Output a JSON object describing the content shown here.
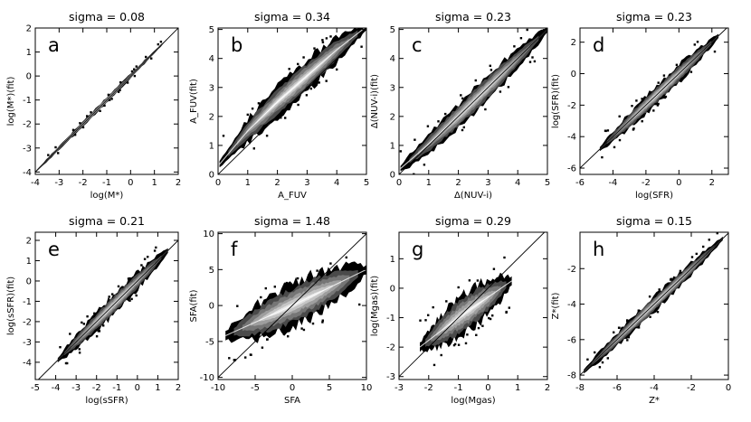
{
  "chart_data": [
    {
      "type": "heatmap",
      "panel_label": "a",
      "title": "sigma =  0.08",
      "xlabel": "log(M*)",
      "ylabel": "log(M*)(fit)",
      "xlim": [
        -4,
        2
      ],
      "ylim": [
        -4.1,
        2
      ],
      "xticks": [
        -4,
        -3,
        -2,
        -1,
        0,
        1,
        2
      ],
      "yticks": [
        -4,
        -3,
        -2,
        -1,
        0,
        1,
        2
      ],
      "ridge": [
        [
          -4,
          -4
        ],
        [
          1.5,
          1.5
        ]
      ],
      "spread": 0.12,
      "x_extent": [
        -4,
        1.5
      ],
      "one_to_one_line": true
    },
    {
      "type": "heatmap",
      "panel_label": "b",
      "title": "sigma =  0.34",
      "xlabel": "A_FUV",
      "ylabel": "A_FUV(fit)",
      "xlim": [
        0,
        5
      ],
      "ylim": [
        0,
        5.05
      ],
      "xticks": [
        0,
        1,
        2,
        3,
        4,
        5
      ],
      "yticks": [
        0,
        1,
        2,
        3,
        4,
        5
      ],
      "ridge": [
        [
          0.05,
          0.35
        ],
        [
          0.5,
          0.9
        ],
        [
          1.0,
          1.5
        ],
        [
          2.0,
          2.5
        ],
        [
          3.0,
          3.4
        ],
        [
          4.0,
          4.3
        ],
        [
          5.0,
          5.1
        ]
      ],
      "spread": 0.55,
      "x_extent": [
        0.05,
        5
      ],
      "one_to_one_line": true
    },
    {
      "type": "heatmap",
      "panel_label": "c",
      "title": "sigma =  0.23",
      "xlabel": "Δ(NUV-i)",
      "ylabel": "Δ(NUV-i)(fit)",
      "xlim": [
        0,
        5
      ],
      "ylim": [
        0,
        5.05
      ],
      "xticks": [
        0,
        1,
        2,
        3,
        4,
        5
      ],
      "yticks": [
        0,
        1,
        2,
        3,
        4,
        5
      ],
      "ridge": [
        [
          0.05,
          0.2
        ],
        [
          0.5,
          0.6
        ],
        [
          1.0,
          1.05
        ],
        [
          2.0,
          2.0
        ],
        [
          3.0,
          3.0
        ],
        [
          4.0,
          4.0
        ],
        [
          5.0,
          5.0
        ]
      ],
      "spread": 0.45,
      "x_extent": [
        0.05,
        5
      ],
      "one_to_one_line": true
    },
    {
      "type": "heatmap",
      "panel_label": "d",
      "title": "sigma =  0.23",
      "xlabel": "log(SFR)",
      "ylabel": "log(SFR)(fit)",
      "xlim": [
        -6,
        3
      ],
      "ylim": [
        -6.4,
        2.9
      ],
      "xticks": [
        -6,
        -4,
        -2,
        0,
        2
      ],
      "yticks": [
        -6,
        -4,
        -2,
        0,
        2
      ],
      "ridge": [
        [
          -4.8,
          -4.8
        ],
        [
          2.4,
          2.4
        ]
      ],
      "spread": 0.6,
      "x_extent": [
        -4.8,
        2.4
      ],
      "one_to_one_line": true
    },
    {
      "type": "heatmap",
      "panel_label": "e",
      "title": "sigma =  0.21",
      "xlabel": "log(sSFR)",
      "ylabel": "log(sSFR)(fit)",
      "xlim": [
        -5,
        2
      ],
      "ylim": [
        -4.85,
        2.4
      ],
      "xticks": [
        -5,
        -4,
        -3,
        -2,
        -1,
        0,
        1,
        2
      ],
      "yticks": [
        -4,
        -3,
        -2,
        -1,
        0,
        1,
        2
      ],
      "ridge": [
        [
          -3.9,
          -3.9
        ],
        [
          1.5,
          1.5
        ]
      ],
      "spread": 0.5,
      "x_extent": [
        -3.9,
        1.5
      ],
      "one_to_one_line": true
    },
    {
      "type": "heatmap",
      "panel_label": "f",
      "title": "sigma =  1.48",
      "xlabel": "SFA",
      "ylabel": "SFA(fit)",
      "xlim": [
        -10,
        10
      ],
      "ylim": [
        -10.3,
        10.2
      ],
      "xticks": [
        -10,
        -5,
        0,
        5,
        10
      ],
      "yticks": [
        -10,
        -5,
        0,
        5,
        10
      ],
      "ridge": [
        [
          -9,
          -4.2
        ],
        [
          0,
          0
        ],
        [
          10,
          5
        ]
      ],
      "spread": 3.0,
      "x_extent": [
        -9,
        10
      ],
      "one_to_one_line": true
    },
    {
      "type": "heatmap",
      "panel_label": "g",
      "title": "sigma =  0.29",
      "xlabel": "log(Mgas)",
      "ylabel": "log(Mgas)(fit)",
      "xlim": [
        -3,
        2
      ],
      "ylim": [
        -3.1,
        1.9
      ],
      "xticks": [
        -3,
        -2,
        -1,
        0,
        1,
        2
      ],
      "yticks": [
        -3,
        -2,
        -1,
        0,
        1
      ],
      "ridge": [
        [
          -2.3,
          -2.0
        ],
        [
          -1.0,
          -1.0
        ],
        [
          0.8,
          0.25
        ]
      ],
      "spread": 0.7,
      "x_extent": [
        -2.3,
        0.8
      ],
      "one_to_one_line": true
    },
    {
      "type": "heatmap",
      "panel_label": "h",
      "title": "sigma =  0.15",
      "xlabel": "Z*",
      "ylabel": "Z*(fit)",
      "xlim": [
        -8,
        0
      ],
      "ylim": [
        -8.25,
        0.05
      ],
      "xticks": [
        -8,
        -6,
        -4,
        -2,
        0
      ],
      "yticks": [
        -8,
        -6,
        -4,
        -2
      ],
      "ridge": [
        [
          -7.8,
          -7.8
        ],
        [
          -0.3,
          -0.3
        ]
      ],
      "spread": 0.45,
      "x_extent": [
        -7.8,
        -0.3
      ],
      "one_to_one_line": true
    }
  ],
  "colors": {
    "levels": [
      "#000000",
      "#4a4a4a",
      "#767676",
      "#9e9e9e",
      "#c4c4c4",
      "#e6e6e6"
    ],
    "axes": "#000000",
    "ridge_line": "#ffffff"
  }
}
